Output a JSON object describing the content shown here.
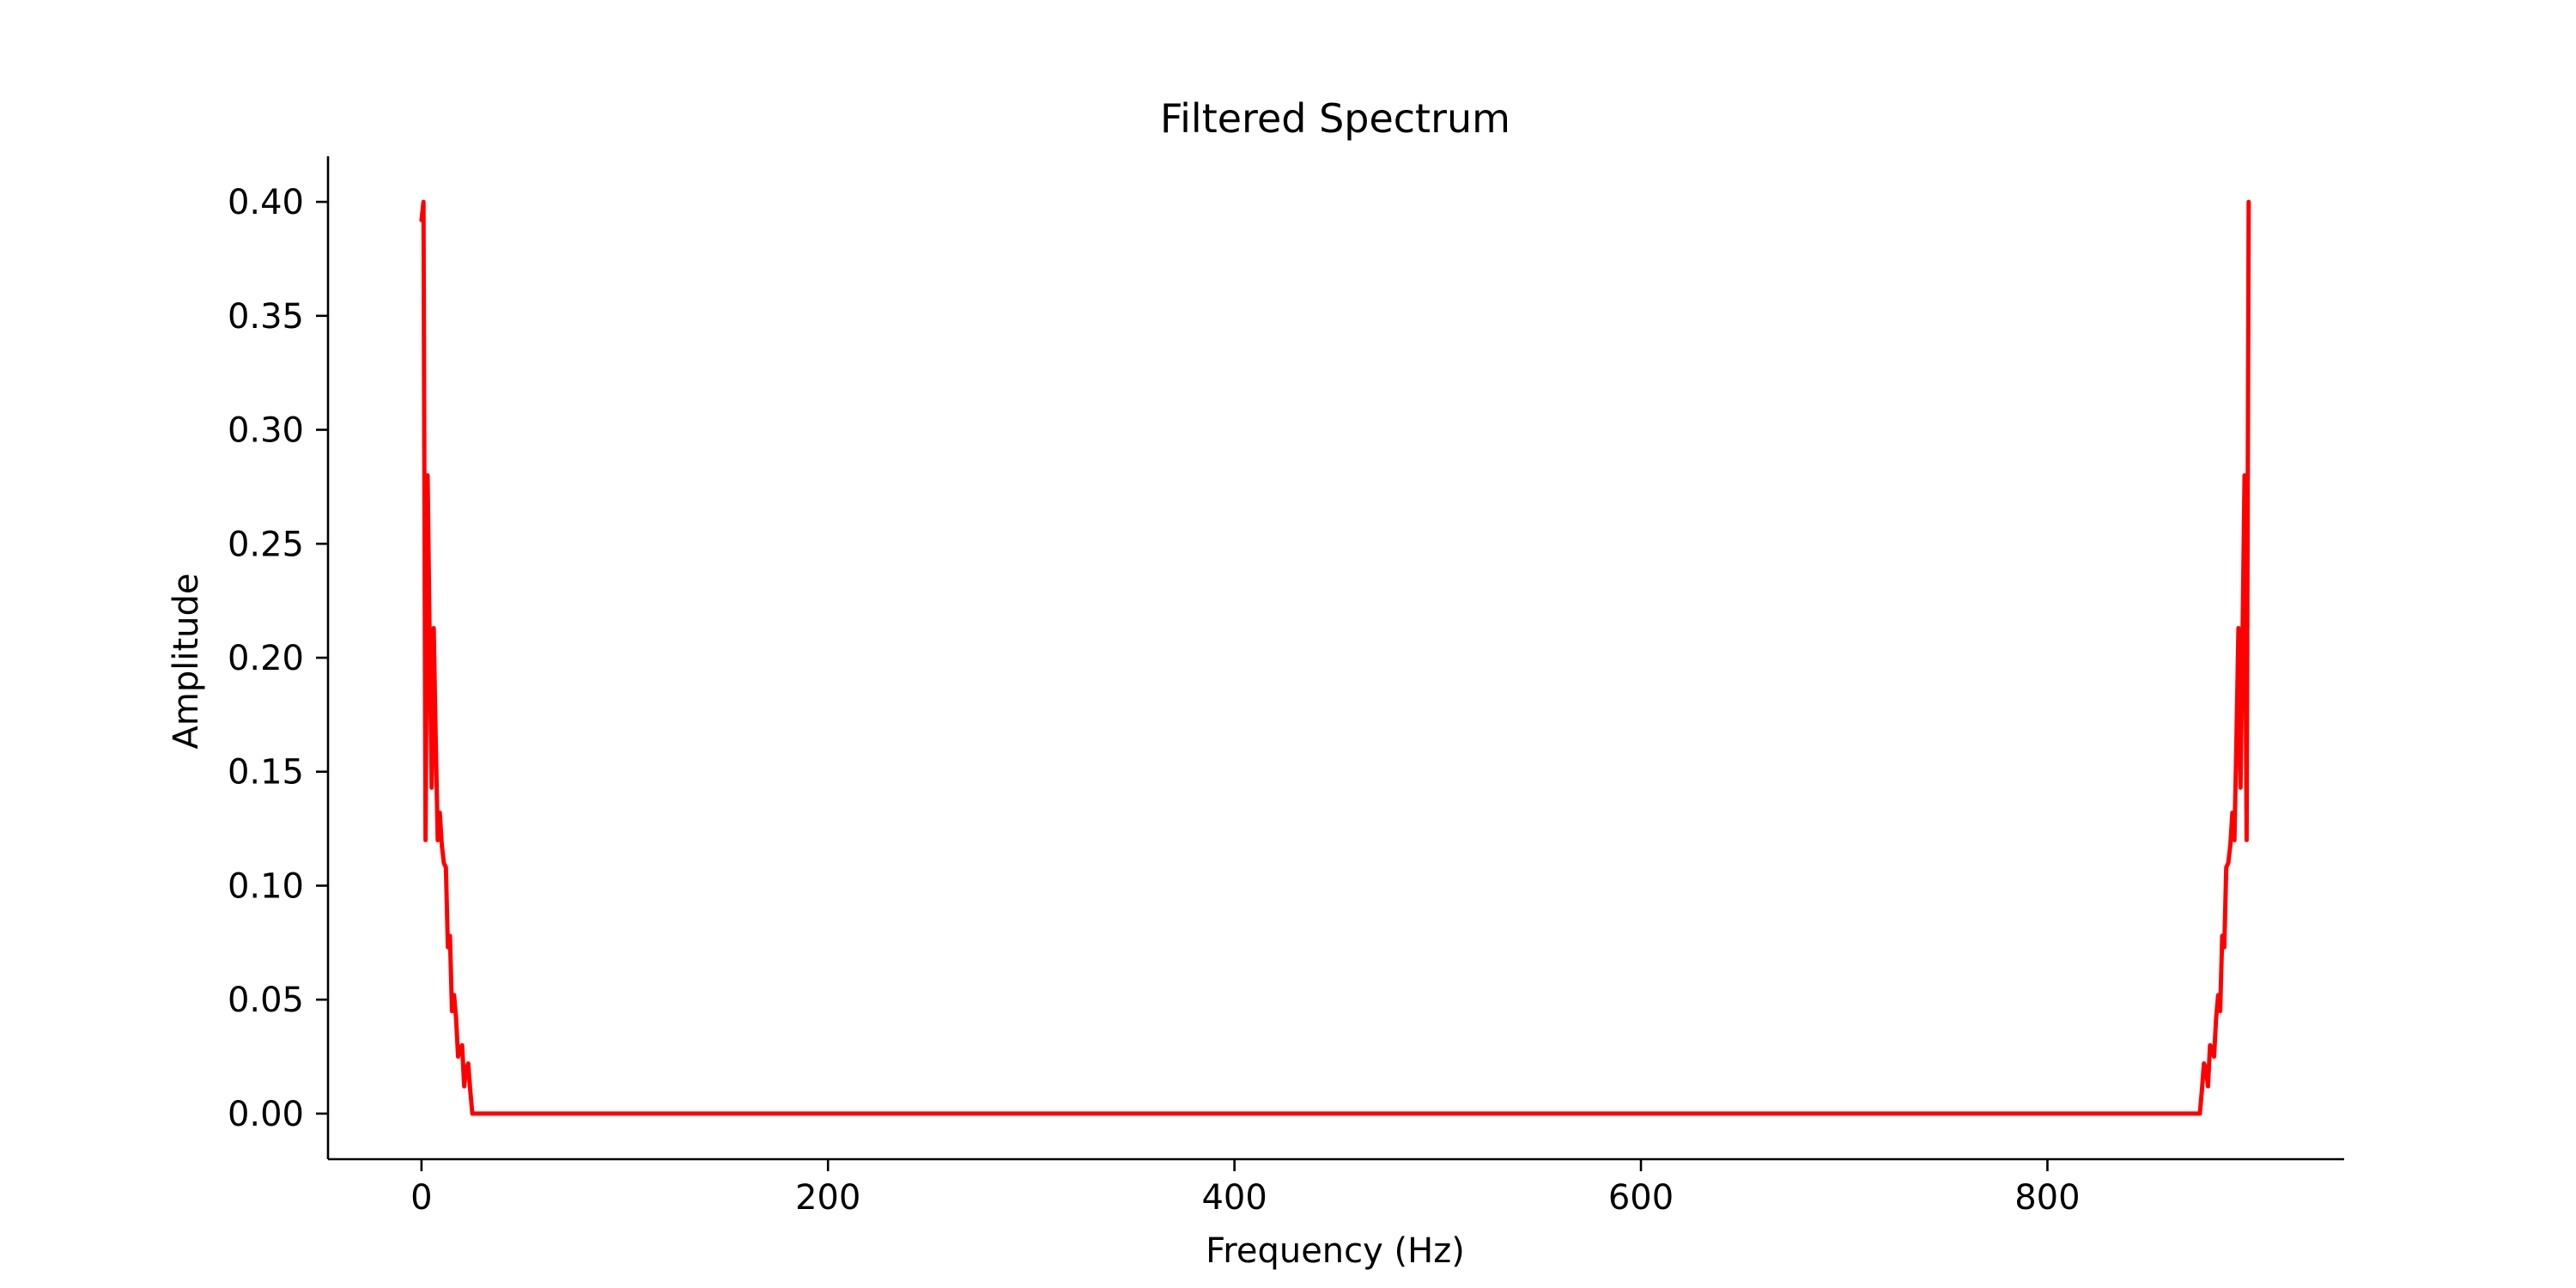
{
  "chart_data": {
    "type": "line",
    "title": "Filtered Spectrum",
    "xlabel": "Frequency (Hz)",
    "ylabel": "Amplitude",
    "xlim": [
      -46,
      946
    ],
    "ylim": [
      -0.02,
      0.42
    ],
    "xticks": [
      0,
      200,
      400,
      600,
      800
    ],
    "xtick_labels": [
      "0",
      "200",
      "400",
      "600",
      "800"
    ],
    "yticks": [
      0.0,
      0.05,
      0.1,
      0.15,
      0.2,
      0.25,
      0.3,
      0.35,
      0.4
    ],
    "ytick_labels": [
      "0.00",
      "0.05",
      "0.10",
      "0.15",
      "0.20",
      "0.25",
      "0.30",
      "0.35",
      "0.40"
    ],
    "grid": false,
    "legend": "none",
    "series": [
      {
        "color": "#ff0000",
        "x": [
          0,
          1,
          2,
          3,
          4,
          5,
          6,
          7,
          8,
          9,
          10,
          11,
          12,
          13,
          14,
          15,
          16,
          17,
          18,
          19,
          20,
          21,
          22,
          23,
          24,
          25,
          26,
          27,
          28,
          29,
          30,
          870,
          871,
          872,
          873,
          874,
          875,
          876,
          877,
          878,
          879,
          880,
          881,
          882,
          883,
          884,
          885,
          886,
          887,
          888,
          889,
          890,
          891,
          892,
          893,
          894,
          895,
          896,
          897,
          898,
          899
        ],
        "y": [
          0.392,
          0.4,
          0.12,
          0.28,
          0.21,
          0.143,
          0.213,
          0.165,
          0.12,
          0.132,
          0.118,
          0.11,
          0.108,
          0.073,
          0.078,
          0.045,
          0.052,
          0.042,
          0.025,
          0.029,
          0.03,
          0.012,
          0.02,
          0.022,
          0.01,
          0.0,
          0.0,
          0.0,
          0.0,
          0.0,
          0.0,
          0.0,
          0.0,
          0.0,
          0.0,
          0.0,
          0.0,
          0.01,
          0.022,
          0.02,
          0.012,
          0.03,
          0.029,
          0.025,
          0.042,
          0.052,
          0.045,
          0.078,
          0.073,
          0.108,
          0.11,
          0.118,
          0.132,
          0.12,
          0.165,
          0.213,
          0.143,
          0.21,
          0.28,
          0.12,
          0.4
        ]
      }
    ]
  }
}
